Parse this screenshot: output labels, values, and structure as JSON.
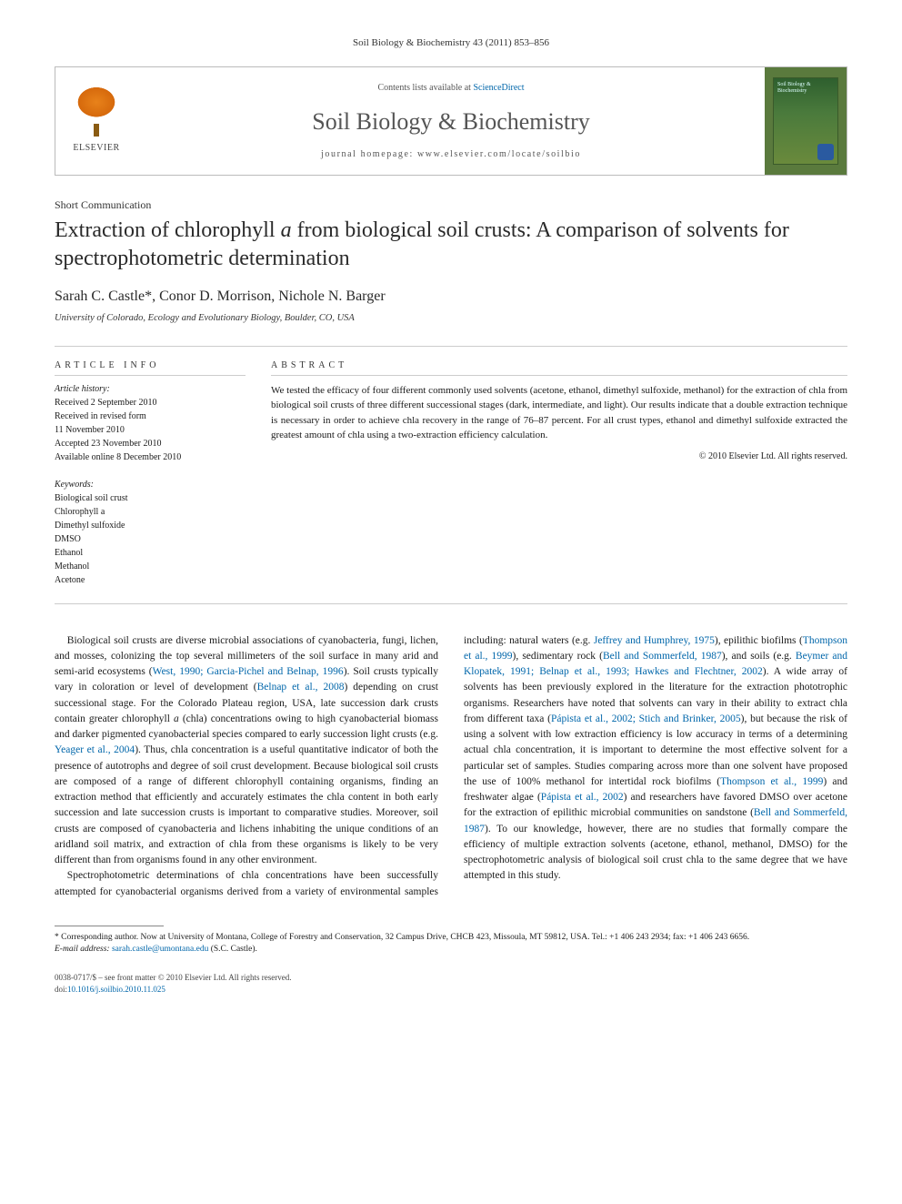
{
  "header_ref": "Soil Biology & Biochemistry 43 (2011) 853–856",
  "masthead": {
    "publisher": "ELSEVIER",
    "contents_prefix": "Contents lists available at ",
    "contents_link": "ScienceDirect",
    "journal": "Soil Biology & Biochemistry",
    "homepage_prefix": "journal homepage: ",
    "homepage_url": "www.elsevier.com/locate/soilbio",
    "cover_title": "Soil Biology & Biochemistry"
  },
  "article": {
    "type": "Short Communication",
    "title_pre": "Extraction of chlorophyll ",
    "title_ital": "a",
    "title_post": " from biological soil crusts: A comparison of solvents for spectrophotometric determination",
    "authors": "Sarah C. Castle*, Conor D. Morrison, Nichole N. Barger",
    "affiliation": "University of Colorado, Ecology and Evolutionary Biology, Boulder, CO, USA"
  },
  "info": {
    "heading": "ARTICLE INFO",
    "history_label": "Article history:",
    "history": [
      "Received 2 September 2010",
      "Received in revised form",
      "11 November 2010",
      "Accepted 23 November 2010",
      "Available online 8 December 2010"
    ],
    "keywords_label": "Keywords:",
    "keywords": [
      "Biological soil crust",
      "Chlorophyll a",
      "Dimethyl sulfoxide",
      "DMSO",
      "Ethanol",
      "Methanol",
      "Acetone"
    ]
  },
  "abstract": {
    "heading": "ABSTRACT",
    "text": "We tested the efficacy of four different commonly used solvents (acetone, ethanol, dimethyl sulfoxide, methanol) for the extraction of chla from biological soil crusts of three different successional stages (dark, intermediate, and light). Our results indicate that a double extraction technique is necessary in order to achieve chla recovery in the range of 76–87 percent. For all crust types, ethanol and dimethyl sulfoxide extracted the greatest amount of chla using a two-extraction efficiency calculation.",
    "copyright": "© 2010 Elsevier Ltd. All rights reserved."
  },
  "body": {
    "p1a": "Biological soil crusts are diverse microbial associations of cyanobacteria, fungi, lichen, and mosses, colonizing the top several millimeters of the soil surface in many arid and semi-arid ecosystems (",
    "p1r1": "West, 1990; Garcia-Pichel and Belnap, 1996",
    "p1b": "). Soil crusts typically vary in coloration or level of development (",
    "p1r2": "Belnap et al., 2008",
    "p1c": ") depending on crust successional stage. For the Colorado Plateau region, USA, late succession dark crusts contain greater chlorophyll ",
    "p1ital": "a",
    "p1d": " (chla) concentrations owing to high cyanobacterial biomass and darker pigmented cyanobacterial species compared to early succession light crusts (e.g. ",
    "p1r3": "Yeager et al., 2004",
    "p1e": "). Thus, chla concentration is a useful quantitative indicator of both the presence of autotrophs and degree of soil crust development. Because biological soil crusts are composed of a range of different chlorophyll containing organisms, finding an extraction method that efficiently and accurately estimates the chla content in both early succession and late succession crusts is important to comparative studies. Moreover, soil crusts are composed of cyanobacteria and lichens inhabiting the unique conditions of an aridland soil matrix, and extraction of chla from these organisms is likely to be very different than from organisms found in any other environment.",
    "p2a": "Spectrophotometric determinations of chla concentrations have been successfully attempted for cyanobacterial organisms derived from a variety of environmental samples including: natural waters (e.g. ",
    "p2r1": "Jeffrey and Humphrey, 1975",
    "p2b": "), epilithic biofilms (",
    "p2r2": "Thompson et al., 1999",
    "p2c": "), sedimentary rock (",
    "p2r3": "Bell and Sommerfeld, 1987",
    "p2d": "), and soils (e.g. ",
    "p2r4": "Beymer and Klopatek, 1991; Belnap et al., 1993; Hawkes and Flechtner, 2002",
    "p2e": "). A wide array of solvents has been previously explored in the literature for the extraction phototrophic organisms. Researchers have noted that solvents can vary in their ability to extract chla from different taxa (",
    "p2r5": "Pápista et al., 2002; Stich and Brinker, 2005",
    "p2f": "), but because the risk of using a solvent with low extraction efficiency is low accuracy in terms of a determining actual chla concentration, it is important to determine the most effective solvent for a particular set of samples. Studies comparing across more than one solvent have proposed the use of 100% methanol for intertidal rock biofilms (",
    "p2r6": "Thompson et al., 1999",
    "p2g": ") and freshwater algae (",
    "p2r7": "Pápista et al., 2002",
    "p2h": ") and researchers have favored DMSO over acetone for the extraction of epilithic microbial communities on sandstone (",
    "p2r8": "Bell and Sommerfeld, 1987",
    "p2i": "). To our knowledge, however, there are no studies that formally compare the efficiency of multiple extraction solvents (acetone, ethanol, methanol, DMSO) for the spectrophotometric analysis of biological soil crust chla to the same degree that we have attempted in this study."
  },
  "footnotes": {
    "corr": "* Corresponding author. Now at University of Montana, College of Forestry and Conservation, 32 Campus Drive, CHCB 423, Missoula, MT 59812, USA. Tel.: +1 406 243 2934; fax: +1 406 243 6656.",
    "email_label": "E-mail address: ",
    "email": "sarah.castle@umontana.edu",
    "email_suffix": " (S.C. Castle)."
  },
  "bottom": {
    "line1": "0038-0717/$ – see front matter © 2010 Elsevier Ltd. All rights reserved.",
    "doi_prefix": "doi:",
    "doi": "10.1016/j.soilbio.2010.11.025"
  },
  "colors": {
    "link": "#0066aa",
    "text": "#1a1a1a",
    "rule": "#cccccc",
    "elsevier_orange": "#e8821a",
    "cover_green": "#5a7a3d"
  }
}
